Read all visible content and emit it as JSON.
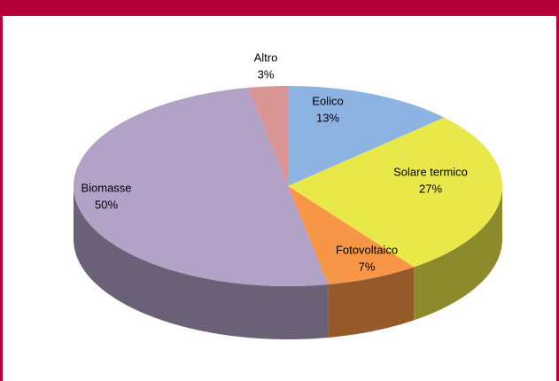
{
  "chart_data": {
    "type": "pie",
    "categories": [
      "Eolico",
      "Solare termico",
      "Fotovoltaico",
      "Biomasse",
      "Altro"
    ],
    "values": [
      13,
      27,
      7,
      50,
      3
    ],
    "value_labels": [
      "13%",
      "27%",
      "7%",
      "50%",
      "3%"
    ],
    "colors": [
      "#8db3e2",
      "#e8e84a",
      "#f79646",
      "#b3a2c7",
      "#d99694"
    ]
  }
}
